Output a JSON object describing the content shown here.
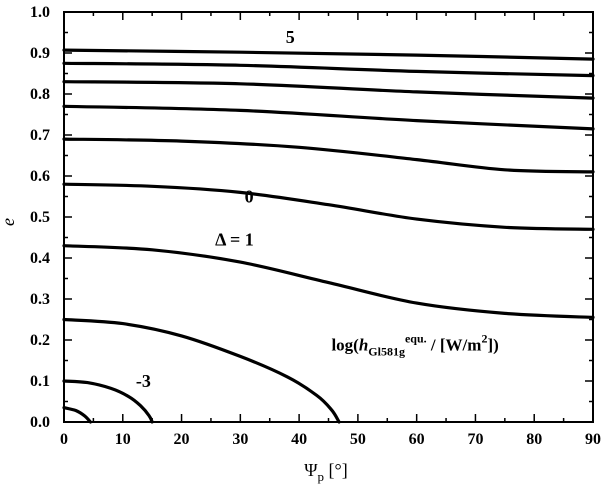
{
  "chart_data": {
    "type": "line",
    "xlabel_main": "Ψ",
    "xlabel_sub": "p",
    "xlabel_unit": " [°]",
    "ylabel": "e",
    "xlim": [
      0,
      90
    ],
    "ylim": [
      0,
      1
    ],
    "x_ticks": [
      "0",
      "10",
      "20",
      "30",
      "40",
      "50",
      "60",
      "70",
      "80",
      "90"
    ],
    "y_ticks": [
      "0.0",
      "0.1",
      "0.2",
      "0.3",
      "0.4",
      "0.5",
      "0.6",
      "0.7",
      "0.8",
      "0.9",
      "1.0"
    ],
    "grid": false,
    "series": [
      {
        "points": [
          [
            0,
            0.035
          ],
          [
            2,
            0.028
          ],
          [
            3.5,
            0.015
          ],
          [
            4.5,
            0.0
          ]
        ]
      },
      {
        "points": [
          [
            0,
            0.1
          ],
          [
            4,
            0.096
          ],
          [
            8,
            0.082
          ],
          [
            11,
            0.062
          ],
          [
            13,
            0.04
          ],
          [
            14.5,
            0.015
          ],
          [
            15,
            0.0
          ]
        ]
      },
      {
        "points": [
          [
            0,
            0.25
          ],
          [
            10,
            0.24
          ],
          [
            20,
            0.21
          ],
          [
            30,
            0.16
          ],
          [
            38,
            0.11
          ],
          [
            43,
            0.065
          ],
          [
            45.5,
            0.03
          ],
          [
            46.8,
            0.0
          ]
        ]
      },
      {
        "points": [
          [
            0,
            0.43
          ],
          [
            15,
            0.42
          ],
          [
            30,
            0.39
          ],
          [
            45,
            0.34
          ],
          [
            60,
            0.29
          ],
          [
            75,
            0.265
          ],
          [
            90,
            0.255
          ]
        ]
      },
      {
        "points": [
          [
            0,
            0.58
          ],
          [
            15,
            0.575
          ],
          [
            30,
            0.56
          ],
          [
            45,
            0.53
          ],
          [
            60,
            0.495
          ],
          [
            75,
            0.475
          ],
          [
            90,
            0.47
          ]
        ]
      },
      {
        "points": [
          [
            0,
            0.69
          ],
          [
            20,
            0.685
          ],
          [
            40,
            0.67
          ],
          [
            60,
            0.64
          ],
          [
            75,
            0.615
          ],
          [
            90,
            0.61
          ]
        ]
      },
      {
        "points": [
          [
            0,
            0.77
          ],
          [
            30,
            0.76
          ],
          [
            60,
            0.735
          ],
          [
            90,
            0.715
          ]
        ]
      },
      {
        "points": [
          [
            0,
            0.83
          ],
          [
            30,
            0.825
          ],
          [
            60,
            0.805
          ],
          [
            90,
            0.79
          ]
        ]
      },
      {
        "points": [
          [
            0,
            0.875
          ],
          [
            30,
            0.87
          ],
          [
            60,
            0.855
          ],
          [
            90,
            0.845
          ]
        ]
      },
      {
        "points": [
          [
            0,
            0.907
          ],
          [
            30,
            0.902
          ],
          [
            60,
            0.895
          ],
          [
            90,
            0.885
          ]
        ]
      }
    ],
    "annotations": [
      {
        "text": "5",
        "x": 38.5,
        "y": 0.925
      },
      {
        "text": "0",
        "x": 31.5,
        "y": 0.535
      },
      {
        "text": "Δ = 1",
        "x": 29,
        "y": 0.43
      },
      {
        "text": "-3",
        "x": 13.5,
        "y": 0.085
      }
    ],
    "legend_text": {
      "prefix": "log(",
      "h": "h",
      "sub": "Gl581g",
      "sup": "equ.",
      "mid": " / [W/m",
      "sup2": "2",
      "suffix": "])",
      "x": 45.5,
      "y": 0.175
    }
  }
}
